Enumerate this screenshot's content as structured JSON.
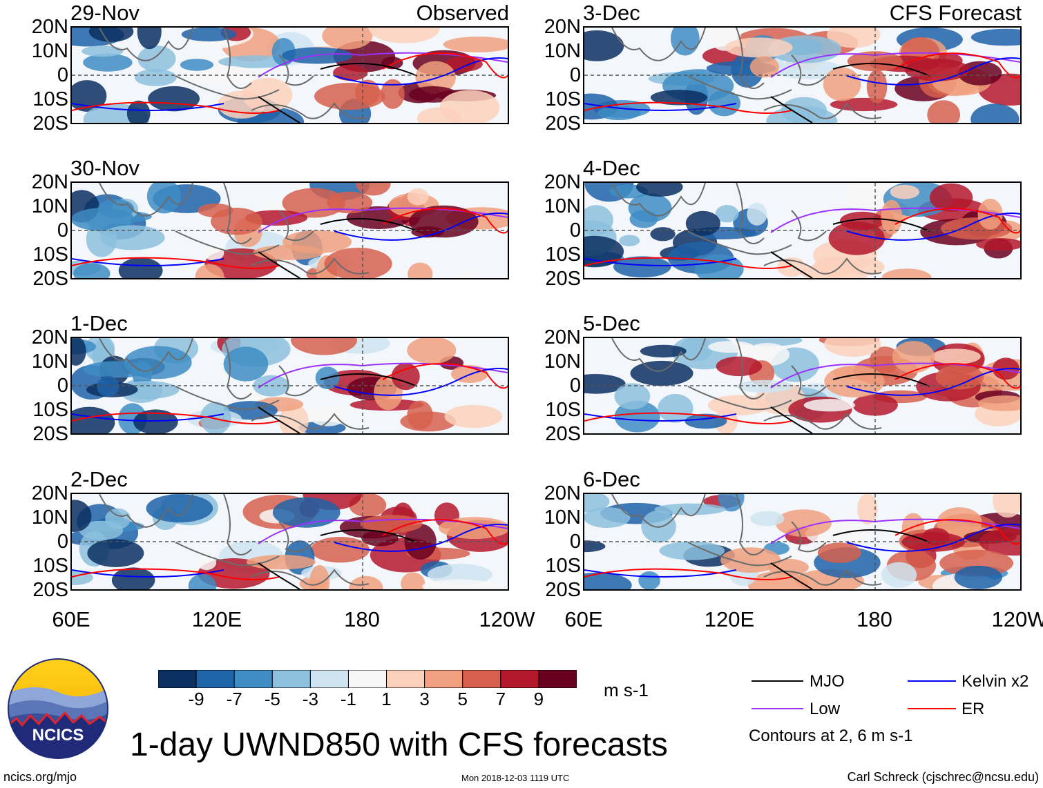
{
  "chart_data": {
    "type": "heatmap",
    "title": "1-day UWND850 with CFS forecasts",
    "variable": "850 hPa zonal wind anomaly",
    "units": "m s-1",
    "x_axis": {
      "ticks": [
        "60E",
        "120E",
        "180",
        "120W"
      ],
      "range": [
        60,
        240
      ]
    },
    "y_axis": {
      "ticks": [
        "20N",
        "10N",
        "0",
        "10S",
        "20S"
      ],
      "range": [
        -20,
        20
      ]
    },
    "colorbar": {
      "tick_labels": [
        "-9",
        "-7",
        "-5",
        "-3",
        "-1",
        "1",
        "3",
        "5",
        "7",
        "9"
      ],
      "colors": [
        "#0b2f60",
        "#1f63a8",
        "#3e8cc3",
        "#8cc0dd",
        "#cfe4f0",
        "#f7f7f7",
        "#fbd1bc",
        "#f0a07e",
        "#d6604d",
        "#b3182b",
        "#6a0020"
      ]
    },
    "legend": {
      "items": [
        {
          "label": "MJO",
          "color": "#000000"
        },
        {
          "label": "Kelvin x2",
          "color": "#0000ff"
        },
        {
          "label": "Low",
          "color": "#9b30ff"
        },
        {
          "label": "ER",
          "color": "#ff0000"
        }
      ],
      "note": "Contours at 2, 6 m s-1"
    },
    "panels": [
      {
        "date": "29-Nov",
        "tag": "Observed",
        "column": "observed"
      },
      {
        "date": "30-Nov",
        "tag": "",
        "column": "observed"
      },
      {
        "date": "1-Dec",
        "tag": "",
        "column": "observed"
      },
      {
        "date": "2-Dec",
        "tag": "",
        "column": "observed"
      },
      {
        "date": "3-Dec",
        "tag": "CFS Forecast",
        "column": "forecast"
      },
      {
        "date": "4-Dec",
        "tag": "",
        "column": "forecast"
      },
      {
        "date": "5-Dec",
        "tag": "",
        "column": "forecast"
      },
      {
        "date": "6-Dec",
        "tag": "",
        "column": "forecast"
      }
    ]
  },
  "footer": {
    "logo_text": "NCICS",
    "left": "ncics.org/mjo",
    "center": "Mon 2018-12-03 1119 UTC",
    "right": "Carl Schreck (cjschrec@ncsu.edu)"
  },
  "x_ticks_left": [
    "60E",
    "120E",
    "180",
    "120W"
  ],
  "x_ticks_right": [
    "60E",
    "120E",
    "180",
    "120W"
  ],
  "colors": {
    "frame": "#000000",
    "coast": "#6b6b6b",
    "mjo": "#000000",
    "kelvin": "#0000ff",
    "low": "#9b30ff",
    "er": "#ff0000"
  }
}
